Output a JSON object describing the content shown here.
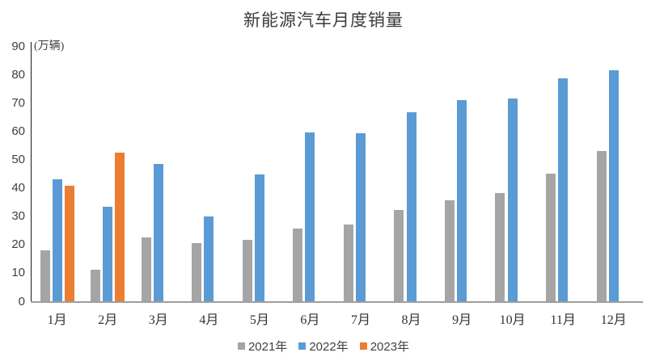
{
  "chart_data": {
    "type": "bar",
    "title": "新能源汽车月度销量",
    "unit_label": "(万辆)",
    "categories": [
      "1月",
      "2月",
      "3月",
      "4月",
      "5月",
      "6月",
      "7月",
      "8月",
      "9月",
      "10月",
      "11月",
      "12月"
    ],
    "series": [
      {
        "name": "2021年",
        "color": "#A5A5A5",
        "values": [
          17.9,
          11.0,
          22.6,
          20.6,
          21.7,
          25.6,
          27.1,
          32.1,
          35.7,
          38.3,
          45.0,
          53.1
        ]
      },
      {
        "name": "2022年",
        "color": "#5B9BD5",
        "values": [
          43.1,
          33.4,
          48.4,
          29.9,
          44.7,
          59.6,
          59.3,
          66.6,
          70.8,
          71.4,
          78.6,
          81.4
        ]
      },
      {
        "name": "2023年",
        "color": "#ED7D31",
        "values": [
          40.8,
          52.5,
          null,
          null,
          null,
          null,
          null,
          null,
          null,
          null,
          null,
          null
        ]
      }
    ],
    "ylim": [
      0,
      90
    ],
    "yticks": [
      0,
      10,
      20,
      30,
      40,
      50,
      60,
      70,
      80,
      90
    ],
    "grid": false,
    "legend_position": "bottom",
    "background_color": "#ffffff",
    "text_color": "#404040",
    "axis_colors": {
      "y_axis": "#1a1a1a",
      "x_axis": "#9e9e9e"
    }
  }
}
